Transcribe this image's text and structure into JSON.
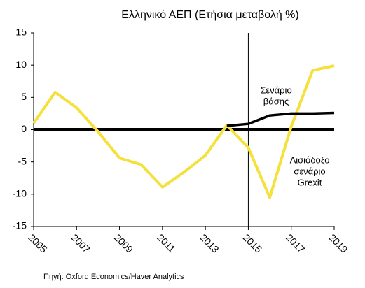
{
  "chart_data": {
    "type": "line",
    "title": "Ελληνικό ΑΕΠ (Ετήσια μεταβολή %)",
    "x": [
      2005,
      2006,
      2007,
      2008,
      2009,
      2010,
      2011,
      2012,
      2013,
      2014,
      2015,
      2016,
      2017,
      2018,
      2019
    ],
    "xlim": [
      2005,
      2019
    ],
    "xticks": [
      2005,
      2007,
      2009,
      2011,
      2013,
      2015,
      2017,
      2019
    ],
    "ylim": [
      -15,
      15
    ],
    "yticks": [
      -15,
      -10,
      -5,
      0,
      5,
      10,
      15
    ],
    "zero_line": true,
    "vline": 2015,
    "series": [
      {
        "name": "Αισιόδοξο σενάριο Grexit",
        "color": "#f5e03c",
        "values": [
          1.0,
          5.8,
          3.4,
          -0.3,
          -4.4,
          -5.4,
          -8.9,
          -6.6,
          -4.0,
          0.7,
          -2.8,
          -10.5,
          0.5,
          9.2,
          9.9
        ]
      },
      {
        "name": "Σενάριο βάσης",
        "color": "#000000",
        "values": [
          null,
          null,
          null,
          null,
          null,
          null,
          null,
          null,
          null,
          0.6,
          0.9,
          2.2,
          2.5,
          2.5,
          2.6
        ]
      }
    ],
    "annotations": [
      [
        "Σενάριο",
        "βάσης"
      ],
      [
        "Αισιόδοξο",
        "σενάριο",
        "Grexit"
      ]
    ],
    "source": "Πηγή: Oxford Economics/Haver Analytics"
  }
}
